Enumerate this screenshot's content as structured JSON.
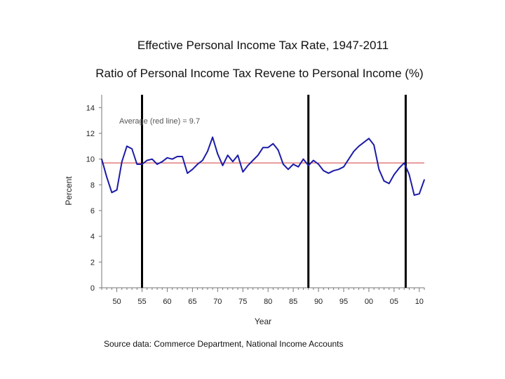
{
  "chart_data": {
    "type": "line",
    "title": "Effective Personal Income Tax Rate, 1947-2011",
    "subtitle": "Ratio of Personal Income Tax Revene to Personal Income (%)",
    "xlabel": "Year",
    "ylabel": "Percent",
    "source": "Source data: Commerce Department, National Income Accounts",
    "annotation": "Average (red line) = 9.7",
    "average": 9.7,
    "xlim": [
      1947,
      2011
    ],
    "ylim": [
      0,
      15
    ],
    "yticks": [
      0,
      2,
      4,
      6,
      8,
      10,
      12,
      14
    ],
    "xticks": [
      1950,
      1955,
      1960,
      1965,
      1970,
      1975,
      1980,
      1985,
      1990,
      1995,
      2000,
      2005,
      2010
    ],
    "xtick_labels": [
      "50",
      "55",
      "60",
      "65",
      "70",
      "75",
      "80",
      "85",
      "90",
      "95",
      "00",
      "05",
      "10"
    ],
    "vertical_lines": [
      1955,
      1988,
      2007.3
    ],
    "grid": false,
    "colors": {
      "series": "#1c1ca8",
      "average": "#d23c3c",
      "vlines": "#000000",
      "axis": "#777777"
    },
    "series": [
      {
        "name": "Effective Personal Income Tax Rate",
        "x": [
          1947,
          1948,
          1949,
          1950,
          1951,
          1952,
          1953,
          1954,
          1955,
          1956,
          1957,
          1958,
          1959,
          1960,
          1961,
          1962,
          1963,
          1964,
          1965,
          1966,
          1967,
          1968,
          1969,
          1970,
          1971,
          1972,
          1973,
          1974,
          1975,
          1976,
          1977,
          1978,
          1979,
          1980,
          1981,
          1982,
          1983,
          1984,
          1985,
          1986,
          1987,
          1988,
          1989,
          1990,
          1991,
          1992,
          1993,
          1994,
          1995,
          1996,
          1997,
          1998,
          1999,
          2000,
          2001,
          2002,
          2003,
          2004,
          2005,
          2006,
          2007,
          2008,
          2009,
          2010,
          2011
        ],
        "values": [
          10.0,
          8.6,
          7.4,
          7.6,
          9.8,
          11.0,
          10.8,
          9.6,
          9.6,
          9.9,
          10.0,
          9.6,
          9.8,
          10.1,
          10.0,
          10.2,
          10.2,
          8.9,
          9.2,
          9.6,
          9.9,
          10.6,
          11.7,
          10.4,
          9.5,
          10.3,
          9.8,
          10.3,
          9.0,
          9.5,
          9.9,
          10.3,
          10.9,
          10.9,
          11.2,
          10.7,
          9.6,
          9.2,
          9.6,
          9.4,
          10.0,
          9.5,
          9.9,
          9.6,
          9.1,
          8.9,
          9.1,
          9.2,
          9.4,
          10.0,
          10.6,
          11.0,
          11.3,
          11.6,
          11.1,
          9.2,
          8.3,
          8.1,
          8.8,
          9.3,
          9.7,
          8.8,
          7.2,
          7.3,
          8.4
        ]
      }
    ]
  }
}
